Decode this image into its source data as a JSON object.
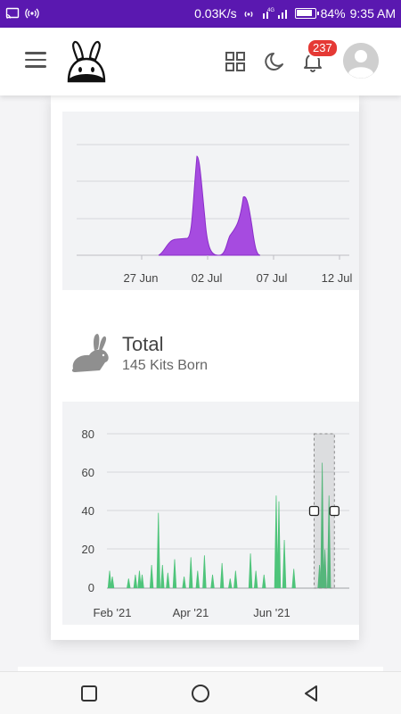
{
  "status_bar": {
    "speed": "0.03K/s",
    "battery": "84%",
    "time": "9:35 AM",
    "network": "4G"
  },
  "header": {
    "notifications_count": "237"
  },
  "chart_top": {
    "type": "area",
    "tick_labels": [
      "27 Jun",
      "02 Jul",
      "07 Jul",
      "12 Jul"
    ],
    "color": "#9b3fd6",
    "peaks": [
      {
        "date": "01 Jul",
        "relative_height": 1.0
      },
      {
        "date": "05 Jul",
        "relative_height": 0.59
      }
    ]
  },
  "total": {
    "title": "Total",
    "subtitle": "145 Kits Born"
  },
  "chart_data": {
    "type": "bar",
    "x_tick_labels": [
      "Feb '21",
      "Apr '21",
      "Jun '21"
    ],
    "y_ticks": [
      0,
      20,
      40,
      60,
      80
    ],
    "ylim": [
      0,
      80
    ],
    "color": "#4ec47a",
    "series": [
      {
        "values": [
          {
            "x": "2021-01-24",
            "y": 9
          },
          {
            "x": "2021-01-26",
            "y": 6
          },
          {
            "x": "2021-02-07",
            "y": 5
          },
          {
            "x": "2021-02-12",
            "y": 7
          },
          {
            "x": "2021-02-15",
            "y": 9
          },
          {
            "x": "2021-02-17",
            "y": 7
          },
          {
            "x": "2021-02-24",
            "y": 12
          },
          {
            "x": "2021-03-01",
            "y": 39
          },
          {
            "x": "2021-03-04",
            "y": 12
          },
          {
            "x": "2021-03-08",
            "y": 8
          },
          {
            "x": "2021-03-13",
            "y": 15
          },
          {
            "x": "2021-03-20",
            "y": 6
          },
          {
            "x": "2021-03-25",
            "y": 16
          },
          {
            "x": "2021-03-30",
            "y": 9
          },
          {
            "x": "2021-04-04",
            "y": 17
          },
          {
            "x": "2021-04-10",
            "y": 7
          },
          {
            "x": "2021-04-17",
            "y": 13
          },
          {
            "x": "2021-04-23",
            "y": 5
          },
          {
            "x": "2021-04-27",
            "y": 9
          },
          {
            "x": "2021-05-08",
            "y": 18
          },
          {
            "x": "2021-05-12",
            "y": 9
          },
          {
            "x": "2021-05-18",
            "y": 7
          },
          {
            "x": "2021-05-27",
            "y": 48
          },
          {
            "x": "2021-05-29",
            "y": 45
          },
          {
            "x": "2021-06-02",
            "y": 25
          },
          {
            "x": "2021-06-09",
            "y": 10
          },
          {
            "x": "2021-06-28",
            "y": 12
          },
          {
            "x": "2021-06-30",
            "y": 65
          },
          {
            "x": "2021-07-02",
            "y": 20
          },
          {
            "x": "2021-07-05",
            "y": 48
          }
        ]
      }
    ],
    "x_domain": [
      "2021-01-22",
      "2021-07-20"
    ],
    "selection": {
      "from": "2021-06-24",
      "to": "2021-07-09"
    }
  }
}
